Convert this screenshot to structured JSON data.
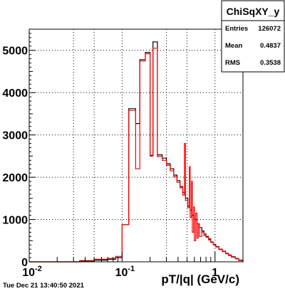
{
  "chart_data": {
    "type": "line",
    "title": "",
    "xlabel": "pT/|q| (GeV/c)",
    "ylabel": "",
    "x_scale": "log",
    "xlim": [
      0.01,
      2.0
    ],
    "ylim": [
      0,
      5500
    ],
    "grid": true,
    "x_tick_labels": [
      {
        "value": 0.01,
        "base": "10",
        "exp": "-2"
      },
      {
        "value": 0.1,
        "base": "10",
        "exp": "-1"
      },
      {
        "value": 1,
        "base": "1",
        "exp": ""
      }
    ],
    "y_ticks": [
      0,
      1000,
      2000,
      3000,
      4000,
      5000
    ],
    "y_tick_labels": [
      "0",
      "1000",
      "2000",
      "3000",
      "4000",
      "5000"
    ],
    "stats_box": {
      "title": "ChiSqXY_y",
      "rows": [
        {
          "label": "Entries",
          "value": "126072"
        },
        {
          "label": "Mean",
          "value": "0.4837"
        },
        {
          "label": "RMS",
          "value": "0.3538"
        }
      ]
    },
    "series": [
      {
        "color": "#000000",
        "points": [
          [
            0.01,
            0
          ],
          [
            0.035,
            20
          ],
          [
            0.05,
            40
          ],
          [
            0.07,
            60
          ],
          [
            0.085,
            100
          ],
          [
            0.1,
            880
          ],
          [
            0.118,
            3620
          ],
          [
            0.14,
            3270
          ],
          [
            0.155,
            4780
          ],
          [
            0.178,
            4950
          ],
          [
            0.2,
            2520
          ],
          [
            0.215,
            5200
          ],
          [
            0.24,
            2530
          ],
          [
            0.27,
            2450
          ],
          [
            0.3,
            2320
          ],
          [
            0.33,
            2200
          ],
          [
            0.36,
            2050
          ],
          [
            0.39,
            1920
          ],
          [
            0.42,
            1780
          ],
          [
            0.45,
            1640
          ],
          [
            0.48,
            1500
          ],
          [
            0.51,
            1320
          ],
          [
            0.54,
            1220
          ],
          [
            0.57,
            1100
          ],
          [
            0.6,
            1000
          ],
          [
            0.64,
            900
          ],
          [
            0.68,
            810
          ],
          [
            0.72,
            730
          ],
          [
            0.76,
            660
          ],
          [
            0.8,
            600
          ],
          [
            0.85,
            540
          ],
          [
            0.9,
            470
          ],
          [
            0.96,
            410
          ],
          [
            1.02,
            360
          ],
          [
            1.1,
            300
          ],
          [
            1.2,
            250
          ],
          [
            1.3,
            200
          ],
          [
            1.4,
            160
          ],
          [
            1.5,
            120
          ],
          [
            1.65,
            80
          ],
          [
            1.8,
            40
          ],
          [
            2.0,
            0
          ]
        ]
      },
      {
        "color": "#ff0000",
        "points": [
          [
            0.01,
            0
          ],
          [
            0.035,
            30
          ],
          [
            0.05,
            60
          ],
          [
            0.07,
            80
          ],
          [
            0.085,
            130
          ],
          [
            0.1,
            880
          ],
          [
            0.118,
            3580
          ],
          [
            0.14,
            2200
          ],
          [
            0.155,
            4750
          ],
          [
            0.178,
            4920
          ],
          [
            0.2,
            2500
          ],
          [
            0.215,
            5050
          ],
          [
            0.24,
            2490
          ],
          [
            0.27,
            2400
          ],
          [
            0.3,
            2280
          ],
          [
            0.33,
            2150
          ],
          [
            0.36,
            2010
          ],
          [
            0.39,
            1880
          ],
          [
            0.42,
            1750
          ],
          [
            0.45,
            1580
          ],
          [
            0.47,
            2800
          ],
          [
            0.48,
            1450
          ],
          [
            0.51,
            1280
          ],
          [
            0.53,
            2250
          ],
          [
            0.54,
            1050
          ],
          [
            0.56,
            1900
          ],
          [
            0.57,
            700
          ],
          [
            0.59,
            1300
          ],
          [
            0.6,
            500
          ],
          [
            0.62,
            1150
          ],
          [
            0.64,
            560
          ],
          [
            0.66,
            900
          ],
          [
            0.68,
            600
          ],
          [
            0.72,
            700
          ],
          [
            0.76,
            620
          ],
          [
            0.8,
            580
          ],
          [
            0.85,
            520
          ],
          [
            0.9,
            460
          ],
          [
            0.96,
            400
          ],
          [
            1.02,
            350
          ],
          [
            1.1,
            290
          ],
          [
            1.2,
            240
          ],
          [
            1.3,
            190
          ],
          [
            1.4,
            150
          ],
          [
            1.5,
            110
          ],
          [
            1.65,
            70
          ],
          [
            1.8,
            30
          ],
          [
            2.0,
            0
          ]
        ]
      }
    ]
  },
  "timestamp": "Tue Dec 21 13:40:50 2021"
}
